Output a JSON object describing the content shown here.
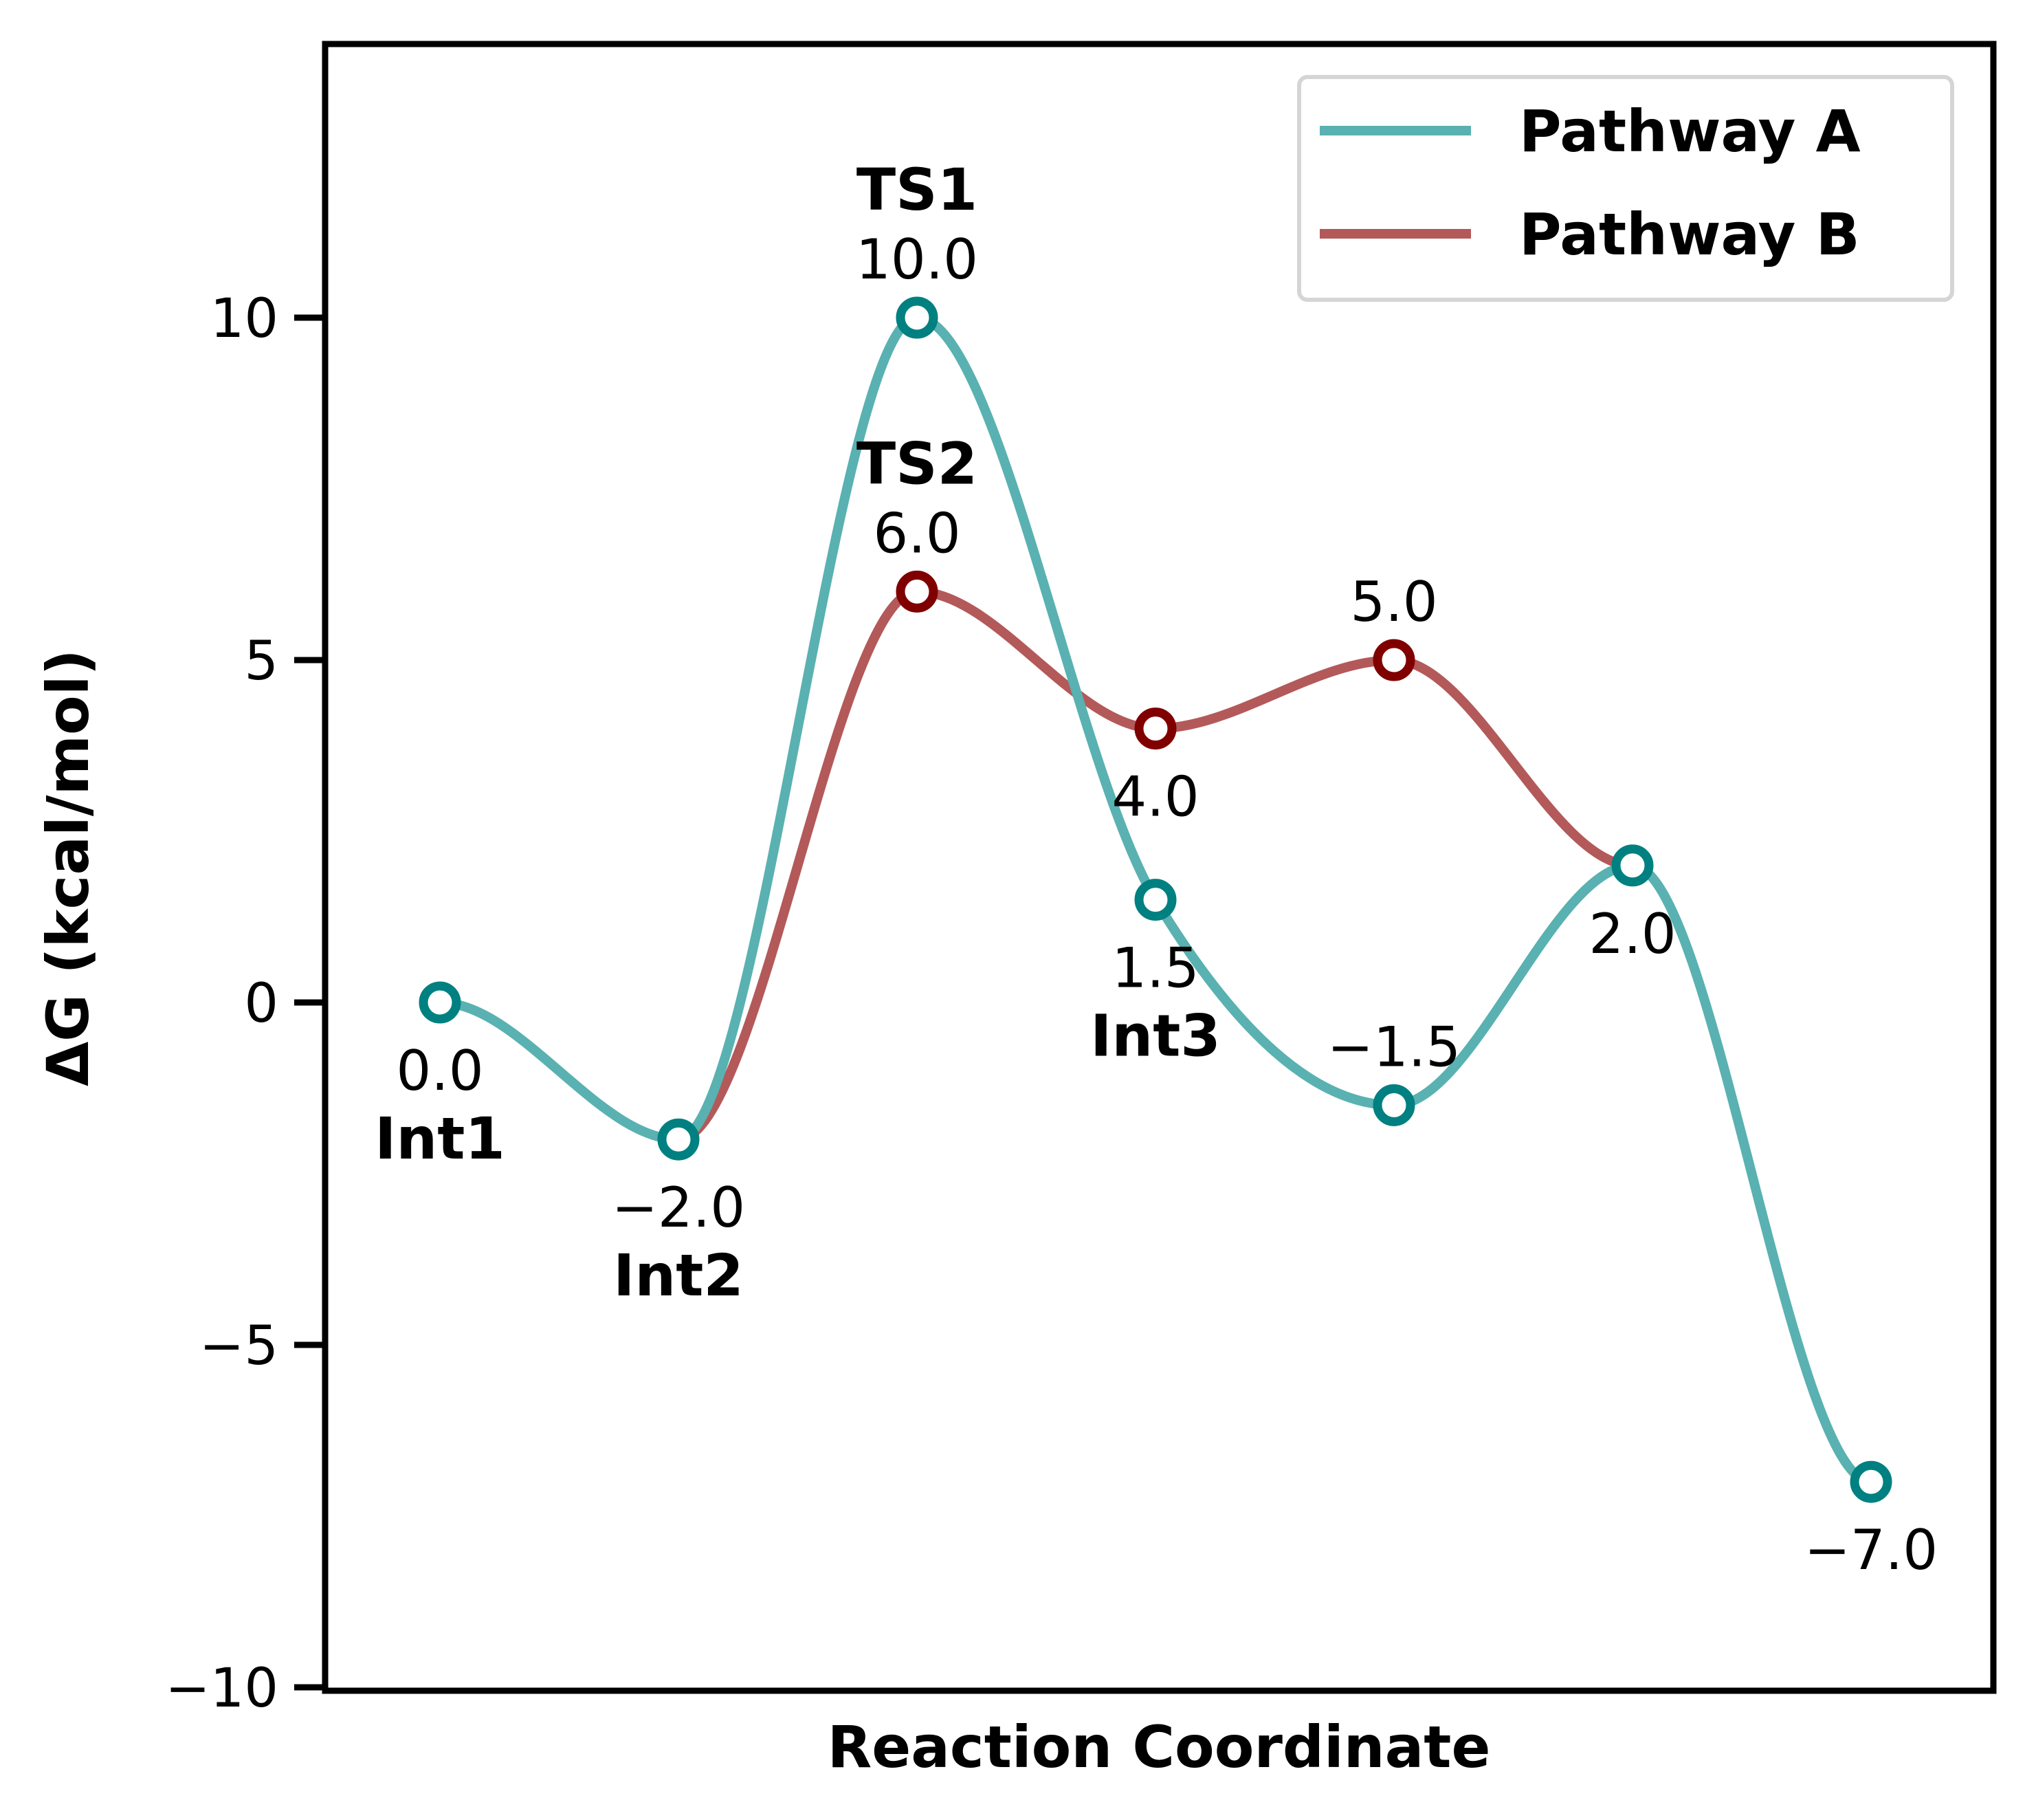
{
  "chart_data": {
    "type": "line",
    "xlabel": "Reaction Coordinate",
    "ylabel": "ΔG (kcal/mol)",
    "ylim": [
      -10,
      14
    ],
    "yticks": [
      -10,
      -5,
      0,
      5,
      10
    ],
    "ytick_labels": [
      "−10",
      "−5",
      "0",
      "5",
      "10"
    ],
    "grid": false,
    "legend_position": "top-right",
    "series": [
      {
        "name": "Pathway A",
        "color": "#5ab1b1",
        "marker_color": "#008080",
        "x": [
          0,
          1,
          2,
          3,
          4,
          5,
          6
        ],
        "values": [
          0.0,
          -2.0,
          10.0,
          1.5,
          -1.5,
          2.0,
          -7.0
        ]
      },
      {
        "name": "Pathway B",
        "color": "#b35959",
        "marker_color": "#800000",
        "x": [
          1,
          2,
          3,
          4,
          5
        ],
        "values": [
          -2.0,
          6.0,
          4.0,
          5.0,
          2.0
        ]
      }
    ],
    "value_labels": [
      {
        "series": 0,
        "index": 0,
        "text": "0.0",
        "pos": "below"
      },
      {
        "series": 0,
        "index": 1,
        "text": "−2.0",
        "pos": "below"
      },
      {
        "series": 0,
        "index": 2,
        "text": "10.0",
        "pos": "above"
      },
      {
        "series": 0,
        "index": 3,
        "text": "1.5",
        "pos": "below"
      },
      {
        "series": 0,
        "index": 4,
        "text": "−1.5",
        "pos": "above"
      },
      {
        "series": 0,
        "index": 5,
        "text": "2.0",
        "pos": "below"
      },
      {
        "series": 0,
        "index": 6,
        "text": "−7.0",
        "pos": "below"
      },
      {
        "series": 1,
        "index": 1,
        "text": "6.0",
        "pos": "above"
      },
      {
        "series": 1,
        "index": 2,
        "text": "4.0",
        "pos": "below"
      },
      {
        "series": 1,
        "index": 3,
        "text": "5.0",
        "pos": "above"
      }
    ],
    "state_labels": [
      {
        "text": "Int1",
        "x": 0,
        "y": 0.0,
        "pos": "below"
      },
      {
        "text": "Int2",
        "x": 1,
        "y": -2.0,
        "pos": "below"
      },
      {
        "text": "TS1",
        "x": 2,
        "y": 10.0,
        "pos": "above"
      },
      {
        "text": "TS2",
        "x": 2,
        "y": 6.0,
        "pos": "above"
      },
      {
        "text": "Int3",
        "x": 3,
        "y": 1.5,
        "pos": "below"
      }
    ]
  }
}
